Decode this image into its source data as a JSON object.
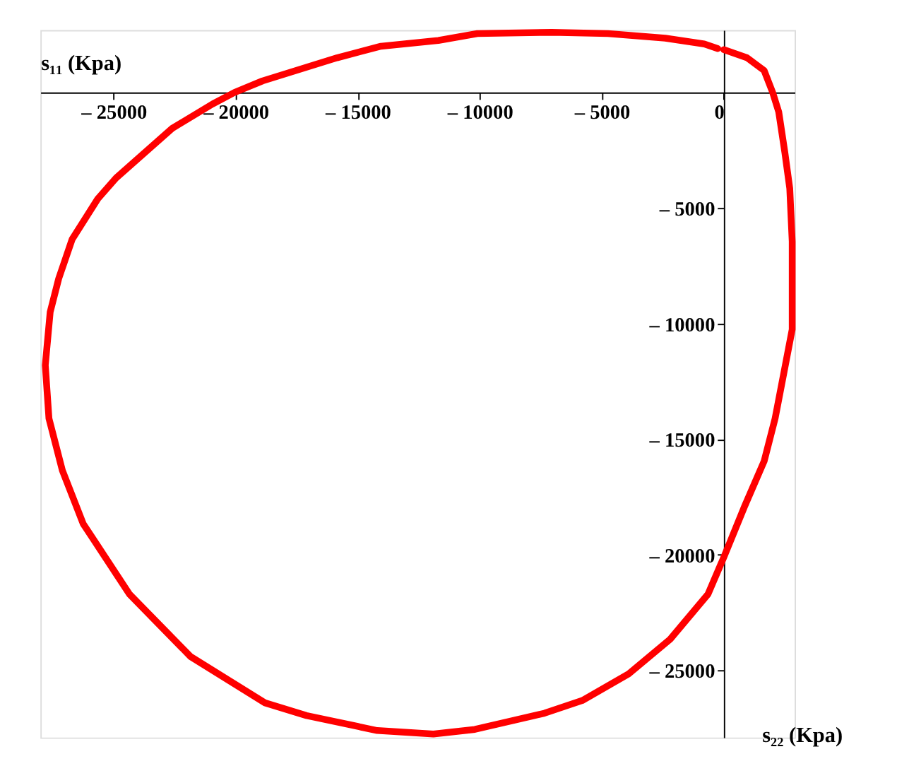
{
  "chart_data": {
    "type": "line",
    "xlabel": "s₁₁ (Kpa)",
    "ylabel": "s₂₂ (Kpa)",
    "xlim": [
      -28000,
      2900
    ],
    "ylim": [
      -27900,
      2700
    ],
    "xticks": [
      {
        "value": -25000,
        "label": "– 25000"
      },
      {
        "value": -20000,
        "label": "– 20000"
      },
      {
        "value": -15000,
        "label": "– 15000"
      },
      {
        "value": -10000,
        "label": "– 10000"
      },
      {
        "value": -5000,
        "label": "– 5000"
      },
      0
    ],
    "yticks": [
      {
        "value": -5000,
        "label": "– 5000"
      },
      {
        "value": -10000,
        "label": "– 10000"
      },
      {
        "value": -15000,
        "label": "– 15000"
      },
      {
        "value": -20000,
        "label": "– 20000"
      },
      {
        "value": -25000,
        "label": "– 25000"
      }
    ],
    "grid": false,
    "marker": "none",
    "line_style": "solid",
    "series": [
      {
        "color": "#ff0000",
        "x": [
          0,
          950,
          1650,
          2000,
          2250,
          2500,
          2700,
          2800,
          2800,
          2100,
          1650,
          850,
          0,
          -650,
          -2200,
          -3900,
          -5800,
          -7350,
          -10200,
          -11900,
          -14200,
          -17100,
          -18800,
          -21850,
          -24350,
          -26250,
          -27100,
          -27650,
          -27800,
          -27600,
          -27250,
          -26700,
          -25650,
          -24900,
          -22600,
          -20950,
          -20050,
          -18900,
          -15850,
          -14050,
          -11700,
          -10100,
          -7050,
          -4750,
          -2400,
          -800,
          -250
        ],
        "values": [
          1850,
          1500,
          950,
          0,
          -850,
          -2600,
          -4150,
          -6450,
          -10250,
          -14100,
          -15950,
          -17900,
          -20100,
          -21700,
          -23650,
          -25150,
          -26300,
          -26850,
          -27550,
          -27750,
          -27600,
          -26950,
          -26400,
          -24400,
          -21700,
          -18650,
          -16350,
          -14100,
          -11800,
          -9500,
          -8050,
          -6350,
          -4600,
          -3700,
          -1550,
          -500,
          0,
          500,
          1500,
          2000,
          2250,
          2550,
          2600,
          2550,
          2350,
          2100,
          1900
        ]
      }
    ]
  }
}
